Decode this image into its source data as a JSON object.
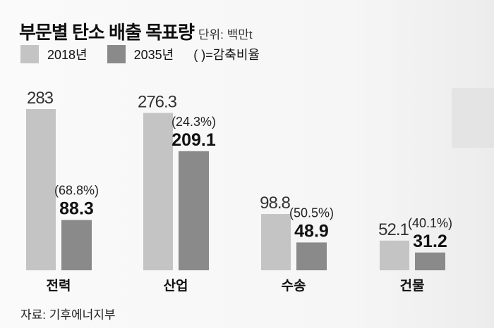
{
  "chart_data": {
    "type": "bar",
    "title": "부문별 탄소 배출 목표량",
    "unit": "단위: 백만t",
    "categories": [
      "전력",
      "산업",
      "수송",
      "건물"
    ],
    "series": [
      {
        "name": "2018년",
        "values": [
          283,
          276.3,
          98.8,
          52.1
        ],
        "color": "#c4c4c4"
      },
      {
        "name": "2035년",
        "values": [
          88.3,
          209.1,
          48.9,
          31.2
        ],
        "color": "#8a8a8a"
      }
    ],
    "reduction_labels": [
      "(68.8%)",
      "(24.3%)",
      "(50.5%)",
      "(40.1%)"
    ],
    "legend_note": "( )=감축비율",
    "source": "자료: 기후에너지부",
    "ylim": [
      0,
      300
    ],
    "grid": false
  }
}
